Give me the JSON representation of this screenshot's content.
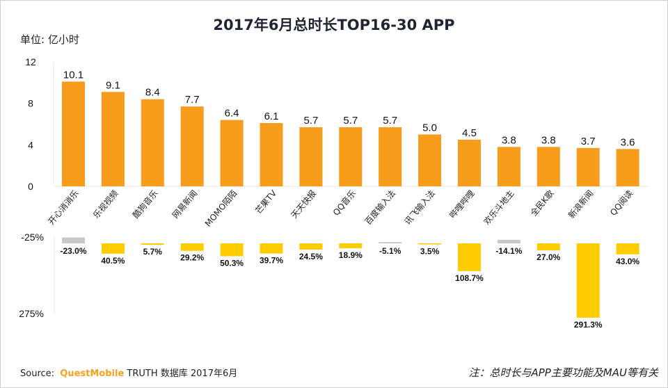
{
  "title": "2017年6月总时长TOP16-30 APP",
  "unit_label": "单位: 亿小时",
  "source": {
    "prefix": "Source:",
    "brand": "QuestMobile",
    "suffix": "TRUTH 数据库 2017年6月"
  },
  "note": "注：总时长与APP主要功能及MAU等有关",
  "colors": {
    "bar": "#f89c1c",
    "growth_positive": "#ffcc00",
    "growth_negative": "#c8c8c8",
    "title": "#1f2533",
    "brand": "#f7a11c"
  },
  "chart_data": [
    {
      "type": "bar",
      "title": "2017年6月总时长TOP16-30 APP",
      "ylabel": "单位: 亿小时",
      "xlabel": "",
      "ylim": [
        0,
        12
      ],
      "yticks": [
        "0",
        "4",
        "8",
        "12"
      ],
      "categories": [
        "开心消消乐",
        "乐视视频",
        "酷狗音乐",
        "网易新闻",
        "MOMO陌陌",
        "芒果TV",
        "天天快报",
        "QQ音乐",
        "百度输入法",
        "讯飞输入法",
        "哔哩哔哩",
        "欢乐斗地主",
        "全民K歌",
        "新浪新闻",
        "QQ阅读"
      ],
      "values": [
        10.1,
        9.1,
        8.4,
        7.7,
        6.4,
        6.1,
        5.7,
        5.7,
        5.7,
        5.0,
        4.5,
        3.8,
        3.8,
        3.7,
        3.6
      ],
      "value_labels": [
        "10.1",
        "9.1",
        "8.4",
        "7.7",
        "6.4",
        "6.1",
        "5.7",
        "5.7",
        "5.7",
        "5.0",
        "4.5",
        "3.8",
        "3.8",
        "3.7",
        "3.6"
      ],
      "grid": false
    },
    {
      "type": "bar",
      "title": "",
      "ylabel": "",
      "xlabel": "",
      "ylim": [
        -25,
        275
      ],
      "axis_inverted": true,
      "yticks": [
        "-25%",
        "275%"
      ],
      "categories": [
        "开心消消乐",
        "乐视视频",
        "酷狗音乐",
        "网易新闻",
        "MOMO陌陌",
        "芒果TV",
        "天天快报",
        "QQ音乐",
        "百度输入法",
        "讯飞输入法",
        "哔哩哔哩",
        "欢乐斗地主",
        "全民K歌",
        "新浪新闻",
        "QQ阅读"
      ],
      "values": [
        -23.0,
        40.5,
        5.7,
        29.2,
        50.3,
        39.7,
        24.5,
        18.9,
        -5.1,
        3.5,
        108.7,
        -14.1,
        27.0,
        291.3,
        43.0
      ],
      "value_labels": [
        "-23.0%",
        "40.5%",
        "5.7%",
        "29.2%",
        "50.3%",
        "39.7%",
        "24.5%",
        "18.9%",
        "-5.1%",
        "3.5%",
        "108.7%",
        "-14.1%",
        "27.0%",
        "291.3%",
        "43.0%"
      ],
      "grid": false
    }
  ]
}
